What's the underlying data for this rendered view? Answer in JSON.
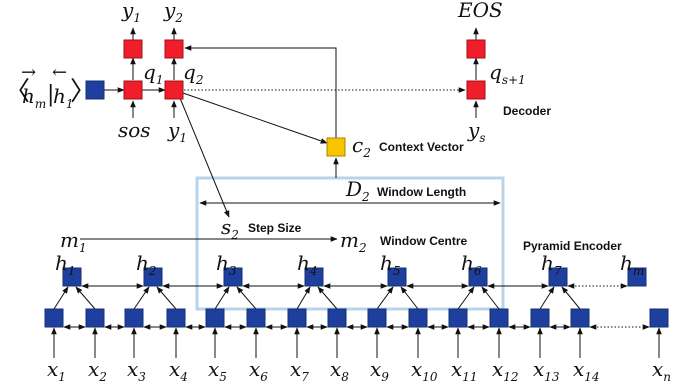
{
  "decoder": {
    "label": "Decoder",
    "outputs": [
      {
        "base": "y",
        "sub": "1"
      },
      {
        "base": "y",
        "sub": "2"
      },
      {
        "base": "EOS",
        "sub": ""
      }
    ],
    "states": [
      {
        "base": "q",
        "sub": "1"
      },
      {
        "base": "q",
        "sub": "2"
      },
      {
        "base": "q",
        "sub": "s+1"
      }
    ],
    "inputs": [
      {
        "base": "sos",
        "sub": ""
      },
      {
        "base": "y",
        "sub": "1"
      },
      {
        "base": "y",
        "sub": "s"
      }
    ],
    "init_state": {
      "h_fwd": "h",
      "h_fwd_sub": "m",
      "h_bwd": "h",
      "h_bwd_sub": "1"
    }
  },
  "context": {
    "symbol": "c",
    "sub": "2",
    "label": "Context Vector"
  },
  "window": {
    "symbol": "D",
    "sub": "2",
    "label": "Window Length"
  },
  "step": {
    "symbol": "s",
    "sub": "2",
    "label": "Step Size"
  },
  "centre": {
    "from": {
      "base": "m",
      "sub": "1"
    },
    "to": {
      "base": "m",
      "sub": "2"
    },
    "label": "Window Centre"
  },
  "encoder": {
    "label": "Pyramid Encoder",
    "hidden": [
      {
        "base": "h",
        "sub": "1"
      },
      {
        "base": "h",
        "sub": "2"
      },
      {
        "base": "h",
        "sub": "3"
      },
      {
        "base": "h",
        "sub": "4"
      },
      {
        "base": "h",
        "sub": "5"
      },
      {
        "base": "h",
        "sub": "6"
      },
      {
        "base": "h",
        "sub": "7"
      },
      {
        "base": "h",
        "sub": "m"
      }
    ],
    "inputs": [
      {
        "base": "x",
        "sub": "1"
      },
      {
        "base": "x",
        "sub": "2"
      },
      {
        "base": "x",
        "sub": "3"
      },
      {
        "base": "x",
        "sub": "4"
      },
      {
        "base": "x",
        "sub": "5"
      },
      {
        "base": "x",
        "sub": "6"
      },
      {
        "base": "x",
        "sub": "7"
      },
      {
        "base": "x",
        "sub": "8"
      },
      {
        "base": "x",
        "sub": "9"
      },
      {
        "base": "x",
        "sub": "10"
      },
      {
        "base": "x",
        "sub": "11"
      },
      {
        "base": "x",
        "sub": "12"
      },
      {
        "base": "x",
        "sub": "13"
      },
      {
        "base": "x",
        "sub": "14"
      },
      {
        "base": "x",
        "sub": "n"
      }
    ]
  },
  "colors": {
    "encoder_node": "#1f3f9e",
    "decoder_node": "#f01e2a",
    "context_node": "#f6c500",
    "window_box": "#b9d4e8"
  }
}
